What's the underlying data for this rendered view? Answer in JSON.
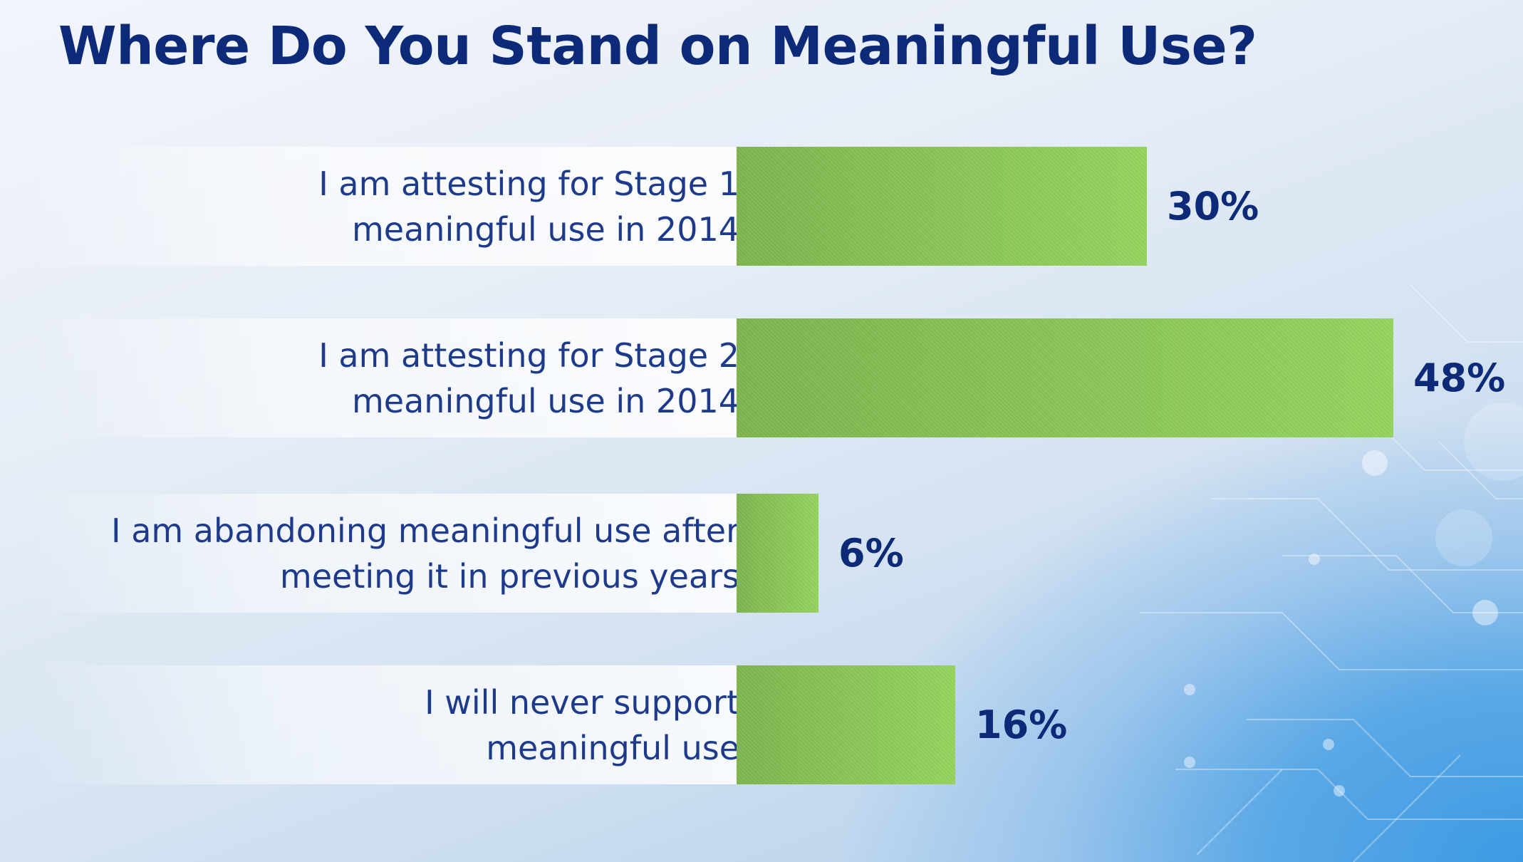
{
  "title": "Where Do You Stand on Meaningful Use?",
  "colors": {
    "bar": "#8cc85a",
    "title": "#0c2a78",
    "label": "#1e3a8a"
  },
  "chart_data": {
    "type": "bar",
    "orientation": "horizontal",
    "title": "Where Do You Stand on Meaningful Use?",
    "categories": [
      "I am attesting for Stage 1\nmeaningful use in 2014",
      "I am attesting for Stage 2\nmeaningful use in 2014",
      "I am abandoning meaningful use after\nmeeting it in previous years",
      "I will never support\nmeaningful use"
    ],
    "values": [
      30,
      48,
      6,
      16
    ],
    "value_labels": [
      "30%",
      "48%",
      "6%",
      "16%"
    ],
    "unit": "%",
    "xlim": [
      0,
      48
    ],
    "grid": false,
    "legend": "none"
  }
}
